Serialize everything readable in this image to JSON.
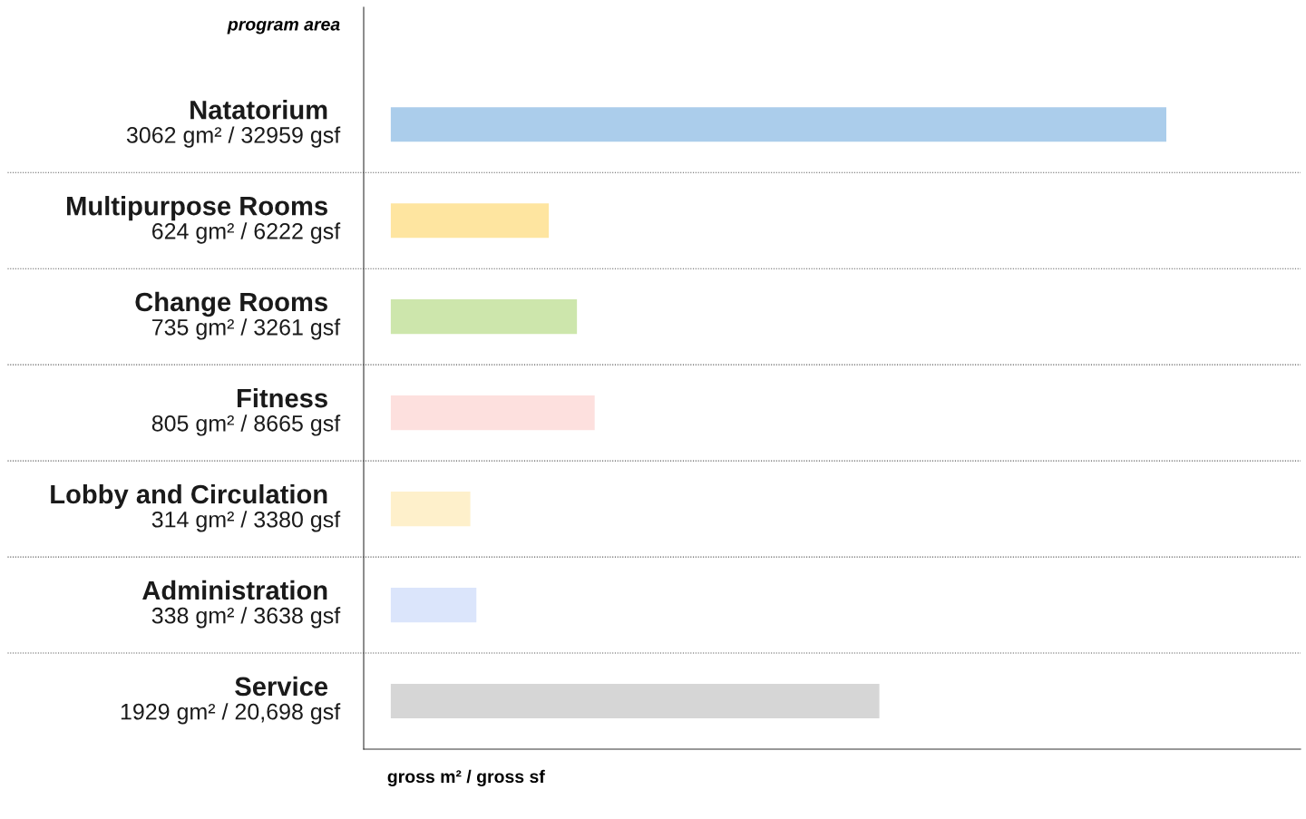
{
  "chart_data": {
    "type": "bar",
    "orientation": "horizontal",
    "xlim": [
      -107,
      3592
    ],
    "tick_labels": "y",
    "ylabel": "program area",
    "xlabel": "gross m² / gross sf",
    "categories": [
      "Natatorium",
      "Multipurpose Rooms",
      "Change Rooms",
      "Fitness",
      "Lobby and Circulation",
      "Administration",
      "Service"
    ],
    "values": [
      3062,
      624,
      735,
      805,
      314,
      338,
      1929
    ],
    "colors": [
      "#abcdeb",
      "#fee5a0",
      "#cde6ac",
      "#fde0de",
      "#fef0cb",
      "#dbe5fb",
      "#d6d6d6"
    ],
    "value_labels": [
      "3062 gm² / 32959 gsf",
      "624 gm² / 6222 gsf",
      "735 gm² / 3261 gsf",
      "805 gm² / 8665 gsf",
      "314 gm² / 3380 gsf",
      "338 gm² / 3638 gsf",
      "1929 gm² / 20,698 gsf"
    ],
    "grid": "y",
    "legend": false
  }
}
